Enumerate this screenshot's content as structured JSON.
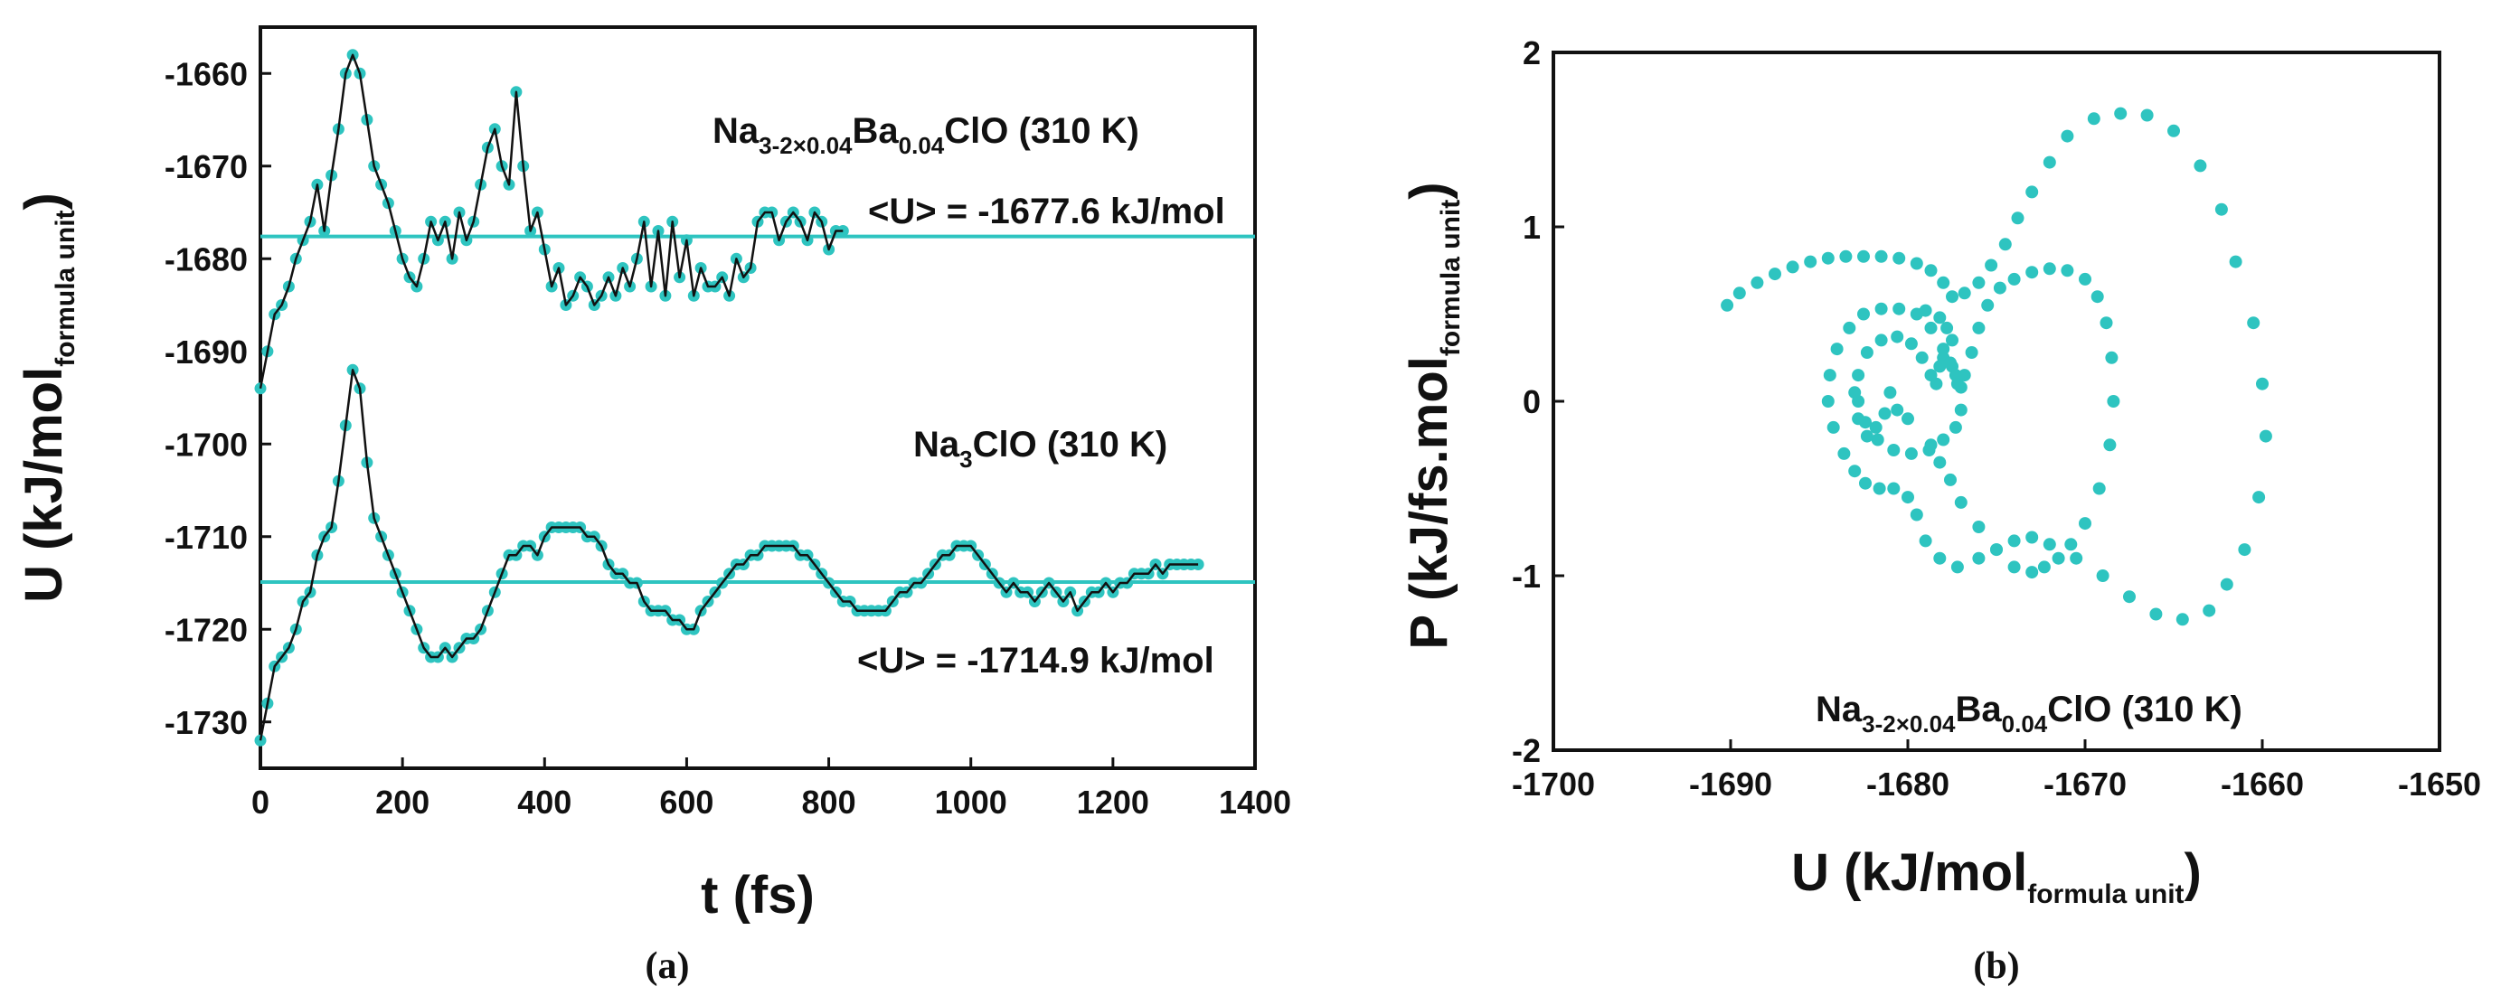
{
  "chart_data": [
    {
      "panel": "(a)",
      "type": "line",
      "xlabel": "t (fs)",
      "ylabel_main": "U (kJ/mol",
      "ylabel_sub": "formula unit",
      "ylabel_close": ")",
      "xlim": [
        0,
        1400
      ],
      "ylim": [
        -1735,
        -1655
      ],
      "xticks": [
        "0",
        "200",
        "400",
        "600",
        "800",
        "1000",
        "1200",
        "1400"
      ],
      "yticks": [
        "-1660",
        "-1670",
        "-1680",
        "-1690",
        "-1700",
        "-1710",
        "-1720",
        "-1730"
      ],
      "colors": {
        "marker": "#2ec4c0",
        "mean_line": "#2ec4c0",
        "curve": "#111111"
      },
      "series": [
        {
          "name": "Na3-2x0.04Ba0.04ClO (310 K)",
          "label_parts": [
            [
              "Na",
              "3-2×0.04"
            ],
            [
              "Ba",
              "0.04"
            ],
            [
              "ClO (310 K)",
              ""
            ]
          ],
          "mean_label": "<U> = -1677.6 kJ/mol",
          "mean": -1677.6,
          "mean_x_range": [
            0,
            1400
          ],
          "x": [
            0,
            10,
            20,
            30,
            40,
            50,
            60,
            70,
            80,
            90,
            100,
            110,
            120,
            130,
            140,
            150,
            160,
            170,
            180,
            190,
            200,
            210,
            220,
            230,
            240,
            250,
            260,
            270,
            280,
            290,
            300,
            310,
            320,
            330,
            340,
            350,
            360,
            370,
            380,
            390,
            400,
            410,
            420,
            430,
            440,
            450,
            460,
            470,
            480,
            490,
            500,
            510,
            520,
            530,
            540,
            550,
            560,
            570,
            580,
            590,
            600,
            610,
            620,
            630,
            640,
            650,
            660,
            670,
            680,
            690,
            700,
            710,
            720,
            730,
            740,
            750,
            760,
            770,
            780,
            790,
            800,
            810,
            820
          ],
          "y": [
            -1694,
            -1690,
            -1686,
            -1685,
            -1683,
            -1680,
            -1678,
            -1676,
            -1672,
            -1677,
            -1671,
            -1666,
            -1660,
            -1658,
            -1660,
            -1665,
            -1670,
            -1672,
            -1674,
            -1677,
            -1680,
            -1682,
            -1683,
            -1680,
            -1676,
            -1678,
            -1676,
            -1680,
            -1675,
            -1678,
            -1676,
            -1672,
            -1668,
            -1666,
            -1670,
            -1672,
            -1662,
            -1670,
            -1677,
            -1675,
            -1679,
            -1683,
            -1681,
            -1685,
            -1684,
            -1682,
            -1683,
            -1685,
            -1684,
            -1682,
            -1684,
            -1681,
            -1683,
            -1680,
            -1676,
            -1683,
            -1677,
            -1684,
            -1676,
            -1682,
            -1678,
            -1684,
            -1681,
            -1683,
            -1683,
            -1682,
            -1684,
            -1680,
            -1682,
            -1681,
            -1676,
            -1675,
            -1675,
            -1678,
            -1676,
            -1675,
            -1676,
            -1678,
            -1675,
            -1676,
            -1679,
            -1677,
            -1677
          ]
        },
        {
          "name": "Na3ClO (310 K)",
          "label_parts": [
            [
              "Na",
              "3"
            ],
            [
              "ClO (310 K)",
              ""
            ]
          ],
          "mean_label": "<U> = -1714.9 kJ/mol",
          "mean": -1714.9,
          "mean_x_range": [
            0,
            1400
          ],
          "x": [
            0,
            10,
            20,
            30,
            40,
            50,
            60,
            70,
            80,
            90,
            100,
            110,
            120,
            130,
            140,
            150,
            160,
            170,
            180,
            190,
            200,
            210,
            220,
            230,
            240,
            250,
            260,
            270,
            280,
            290,
            300,
            310,
            320,
            330,
            340,
            350,
            360,
            370,
            380,
            390,
            400,
            410,
            420,
            430,
            440,
            450,
            460,
            470,
            480,
            490,
            500,
            510,
            520,
            530,
            540,
            550,
            560,
            570,
            580,
            590,
            600,
            610,
            620,
            630,
            640,
            650,
            660,
            670,
            680,
            690,
            700,
            710,
            720,
            730,
            740,
            750,
            760,
            770,
            780,
            790,
            800,
            810,
            820,
            830,
            840,
            850,
            860,
            870,
            880,
            890,
            900,
            910,
            920,
            930,
            940,
            950,
            960,
            970,
            980,
            990,
            1000,
            1010,
            1020,
            1030,
            1040,
            1050,
            1060,
            1070,
            1080,
            1090,
            1100,
            1110,
            1120,
            1130,
            1140,
            1150,
            1160,
            1170,
            1180,
            1190,
            1200,
            1210,
            1220,
            1230,
            1240,
            1250,
            1260,
            1270,
            1280,
            1290,
            1300,
            1310,
            1320
          ],
          "y": [
            -1732,
            -1728,
            -1724,
            -1723,
            -1722,
            -1720,
            -1717,
            -1716,
            -1712,
            -1710,
            -1709,
            -1704,
            -1698,
            -1692,
            -1694,
            -1702,
            -1708,
            -1710,
            -1712,
            -1714,
            -1716,
            -1718,
            -1720,
            -1722,
            -1723,
            -1723,
            -1722,
            -1723,
            -1722,
            -1721,
            -1721,
            -1720,
            -1718,
            -1716,
            -1714,
            -1712,
            -1712,
            -1711,
            -1711,
            -1712,
            -1710,
            -1709,
            -1709,
            -1709,
            -1709,
            -1709,
            -1710,
            -1710,
            -1711,
            -1713,
            -1714,
            -1714,
            -1715,
            -1715,
            -1717,
            -1718,
            -1718,
            -1718,
            -1719,
            -1719,
            -1720,
            -1720,
            -1718,
            -1717,
            -1716,
            -1715,
            -1714,
            -1713,
            -1713,
            -1712,
            -1712,
            -1711,
            -1711,
            -1711,
            -1711,
            -1711,
            -1712,
            -1712,
            -1713,
            -1714,
            -1715,
            -1716,
            -1717,
            -1717,
            -1718,
            -1718,
            -1718,
            -1718,
            -1718,
            -1717,
            -1716,
            -1716,
            -1715,
            -1715,
            -1714,
            -1713,
            -1712,
            -1712,
            -1711,
            -1711,
            -1711,
            -1712,
            -1713,
            -1714,
            -1715,
            -1716,
            -1715,
            -1716,
            -1716,
            -1717,
            -1716,
            -1715,
            -1716,
            -1717,
            -1716,
            -1718,
            -1717,
            -1716,
            -1716,
            -1715,
            -1716,
            -1715,
            -1715,
            -1714,
            -1714,
            -1714,
            -1713,
            -1714,
            -1713,
            -1713,
            -1713,
            -1713,
            -1713
          ]
        }
      ]
    },
    {
      "panel": "(b)",
      "type": "scatter",
      "xlabel_main": "U (kJ/mol",
      "xlabel_sub": "formula unit",
      "xlabel_close": ")",
      "ylabel_main": "P (kJ/fs.mol",
      "ylabel_sub": "formula unit",
      "ylabel_close": ")",
      "xlim": [
        -1700,
        -1650
      ],
      "ylim": [
        -2,
        2
      ],
      "xticks": [
        "-1700",
        "-1690",
        "-1680",
        "-1670",
        "-1660",
        "-1650"
      ],
      "yticks": [
        "2",
        "1",
        "0",
        "-1",
        "-2"
      ],
      "colors": {
        "marker": "#2ec4c0"
      },
      "annotation_parts": [
        [
          "Na",
          "3-2×0.04"
        ],
        [
          "Ba",
          "0.04"
        ],
        [
          "ClO (310 K)",
          ""
        ]
      ],
      "series": [
        {
          "name": "Na3-2x0.04Ba0.04ClO (310 K)",
          "points": [
            [
              -1690.2,
              0.55
            ],
            [
              -1689.5,
              0.62
            ],
            [
              -1688.5,
              0.68
            ],
            [
              -1687.5,
              0.73
            ],
            [
              -1686.5,
              0.77
            ],
            [
              -1685.5,
              0.8
            ],
            [
              -1684.5,
              0.82
            ],
            [
              -1683.5,
              0.83
            ],
            [
              -1682.5,
              0.83
            ],
            [
              -1681.5,
              0.83
            ],
            [
              -1680.5,
              0.82
            ],
            [
              -1679.5,
              0.79
            ],
            [
              -1678.7,
              0.75
            ],
            [
              -1678.0,
              0.68
            ],
            [
              -1677.5,
              0.6
            ],
            [
              -1676.8,
              0.62
            ],
            [
              -1676.0,
              0.68
            ],
            [
              -1675.3,
              0.78
            ],
            [
              -1674.5,
              0.9
            ],
            [
              -1673.8,
              1.05
            ],
            [
              -1673.0,
              1.2
            ],
            [
              -1672.0,
              1.37
            ],
            [
              -1671.0,
              1.52
            ],
            [
              -1669.5,
              1.62
            ],
            [
              -1668.0,
              1.65
            ],
            [
              -1666.5,
              1.64
            ],
            [
              -1665.0,
              1.55
            ],
            [
              -1663.5,
              1.35
            ],
            [
              -1662.3,
              1.1
            ],
            [
              -1661.5,
              0.8
            ],
            [
              -1660.5,
              0.45
            ],
            [
              -1660.0,
              0.1
            ],
            [
              -1659.8,
              -0.2
            ],
            [
              -1660.2,
              -0.55
            ],
            [
              -1661.0,
              -0.85
            ],
            [
              -1662.0,
              -1.05
            ],
            [
              -1663.0,
              -1.2
            ],
            [
              -1664.5,
              -1.25
            ],
            [
              -1666.0,
              -1.22
            ],
            [
              -1667.5,
              -1.12
            ],
            [
              -1669.0,
              -1.0
            ],
            [
              -1670.5,
              -0.9
            ],
            [
              -1672.0,
              -0.82
            ],
            [
              -1673.0,
              -0.78
            ],
            [
              -1674.0,
              -0.8
            ],
            [
              -1675.0,
              -0.85
            ],
            [
              -1676.0,
              -0.9
            ],
            [
              -1677.2,
              -0.95
            ],
            [
              -1678.2,
              -0.9
            ],
            [
              -1679.0,
              -0.8
            ],
            [
              -1679.5,
              -0.65
            ],
            [
              -1680.0,
              -0.55
            ],
            [
              -1680.8,
              -0.5
            ],
            [
              -1681.6,
              -0.5
            ],
            [
              -1682.4,
              -0.47
            ],
            [
              -1683.0,
              -0.4
            ],
            [
              -1683.6,
              -0.3
            ],
            [
              -1684.2,
              -0.15
            ],
            [
              -1684.5,
              0.0
            ],
            [
              -1684.4,
              0.15
            ],
            [
              -1684.0,
              0.3
            ],
            [
              -1683.3,
              0.42
            ],
            [
              -1682.5,
              0.5
            ],
            [
              -1681.5,
              0.53
            ],
            [
              -1680.5,
              0.53
            ],
            [
              -1679.5,
              0.5
            ],
            [
              -1678.7,
              0.42
            ],
            [
              -1678.0,
              0.3
            ],
            [
              -1677.5,
              0.2
            ],
            [
              -1677.2,
              0.1
            ],
            [
              -1677.0,
              -0.05
            ],
            [
              -1677.3,
              -0.15
            ],
            [
              -1678.0,
              -0.22
            ],
            [
              -1678.8,
              -0.28
            ],
            [
              -1679.8,
              -0.3
            ],
            [
              -1680.8,
              -0.28
            ],
            [
              -1681.7,
              -0.22
            ],
            [
              -1682.4,
              -0.12
            ],
            [
              -1682.8,
              0.0
            ],
            [
              -1682.8,
              0.15
            ],
            [
              -1682.3,
              0.28
            ],
            [
              -1681.5,
              0.35
            ],
            [
              -1680.6,
              0.37
            ],
            [
              -1679.8,
              0.33
            ],
            [
              -1679.2,
              0.25
            ],
            [
              -1678.7,
              0.15
            ],
            [
              -1678.4,
              0.1
            ],
            [
              -1678.2,
              0.2
            ],
            [
              -1678.0,
              0.25
            ],
            [
              -1677.6,
              0.22
            ],
            [
              -1677.3,
              0.15
            ],
            [
              -1677.0,
              0.08
            ],
            [
              -1676.8,
              0.15
            ],
            [
              -1676.4,
              0.28
            ],
            [
              -1676.0,
              0.42
            ],
            [
              -1675.5,
              0.55
            ],
            [
              -1674.8,
              0.65
            ],
            [
              -1674.0,
              0.7
            ],
            [
              -1673.0,
              0.74
            ],
            [
              -1672.0,
              0.76
            ],
            [
              -1671.0,
              0.75
            ],
            [
              -1670.0,
              0.7
            ],
            [
              -1669.3,
              0.6
            ],
            [
              -1668.8,
              0.45
            ],
            [
              -1668.5,
              0.25
            ],
            [
              -1668.4,
              0.0
            ],
            [
              -1668.6,
              -0.25
            ],
            [
              -1669.2,
              -0.5
            ],
            [
              -1670.0,
              -0.7
            ],
            [
              -1670.8,
              -0.82
            ],
            [
              -1671.5,
              -0.9
            ],
            [
              -1672.3,
              -0.95
            ],
            [
              -1673.0,
              -0.98
            ],
            [
              -1674.0,
              -0.95
            ],
            [
              -1675.0,
              -0.85
            ],
            [
              -1676.0,
              -0.72
            ],
            [
              -1677.0,
              -0.58
            ],
            [
              -1677.6,
              -0.45
            ],
            [
              -1678.2,
              -0.35
            ],
            [
              -1678.7,
              -0.25
            ],
            [
              -1680.0,
              -0.1
            ],
            [
              -1680.6,
              -0.05
            ],
            [
              -1681.0,
              0.05
            ],
            [
              -1681.3,
              -0.07
            ],
            [
              -1681.8,
              -0.15
            ],
            [
              -1682.3,
              -0.2
            ],
            [
              -1682.8,
              -0.1
            ],
            [
              -1683.0,
              0.05
            ],
            [
              -1679.0,
              0.52
            ],
            [
              -1678.2,
              0.48
            ],
            [
              -1677.8,
              0.42
            ],
            [
              -1677.5,
              0.35
            ]
          ]
        }
      ]
    }
  ],
  "panels": {
    "a_label": "(a)",
    "b_label": "(b)"
  }
}
